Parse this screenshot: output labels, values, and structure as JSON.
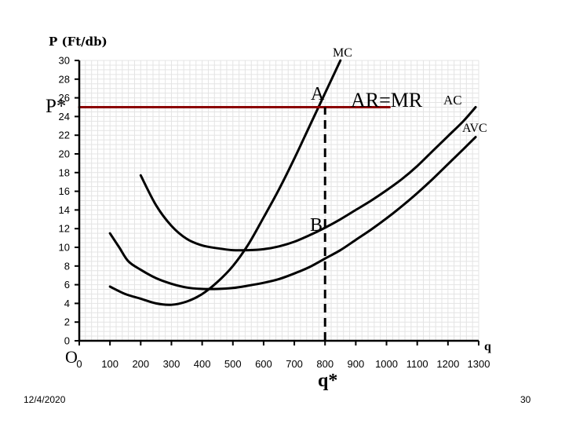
{
  "chart_data": {
    "type": "line",
    "ylabel": "P (Ft/db)",
    "xlabel": "q",
    "origin_label": "O",
    "xlim": [
      0,
      1300
    ],
    "ylim": [
      0,
      30
    ],
    "x_ticks": [
      0,
      100,
      200,
      300,
      400,
      500,
      600,
      700,
      800,
      900,
      1000,
      1100,
      1200,
      1300
    ],
    "y_ticks": [
      0,
      2,
      4,
      6,
      8,
      10,
      12,
      14,
      16,
      18,
      20,
      22,
      24,
      26,
      28,
      30
    ],
    "grid": true,
    "series": [
      {
        "name": "MC",
        "color": "#000000",
        "points": [
          [
            100,
            5.8
          ],
          [
            150,
            5.0
          ],
          [
            200,
            4.5
          ],
          [
            250,
            4.0
          ],
          [
            300,
            3.85
          ],
          [
            350,
            4.2
          ],
          [
            400,
            5.0
          ],
          [
            450,
            6.3
          ],
          [
            500,
            8.0
          ],
          [
            550,
            10.3
          ],
          [
            600,
            13.2
          ],
          [
            650,
            16.2
          ],
          [
            700,
            19.5
          ],
          [
            750,
            23.0
          ],
          [
            800,
            26.5
          ],
          [
            850,
            30.0
          ]
        ]
      },
      {
        "name": "AC",
        "color": "#000000",
        "points": [
          [
            200,
            17.7
          ],
          [
            250,
            14.5
          ],
          [
            300,
            12.3
          ],
          [
            350,
            10.9
          ],
          [
            400,
            10.2
          ],
          [
            450,
            9.9
          ],
          [
            500,
            9.7
          ],
          [
            550,
            9.7
          ],
          [
            600,
            9.8
          ],
          [
            650,
            10.1
          ],
          [
            700,
            10.6
          ],
          [
            750,
            11.3
          ],
          [
            800,
            12.1
          ],
          [
            850,
            13.0
          ],
          [
            900,
            14.0
          ],
          [
            950,
            15.0
          ],
          [
            1000,
            16.1
          ],
          [
            1050,
            17.3
          ],
          [
            1100,
            18.7
          ],
          [
            1150,
            20.3
          ],
          [
            1200,
            21.9
          ],
          [
            1250,
            23.5
          ],
          [
            1290,
            25.0
          ]
        ]
      },
      {
        "name": "AVC",
        "color": "#000000",
        "points": [
          [
            100,
            11.5
          ],
          [
            130,
            10.0
          ],
          [
            160,
            8.5
          ],
          [
            200,
            7.6
          ],
          [
            250,
            6.7
          ],
          [
            300,
            6.1
          ],
          [
            350,
            5.7
          ],
          [
            400,
            5.55
          ],
          [
            450,
            5.55
          ],
          [
            500,
            5.65
          ],
          [
            550,
            5.9
          ],
          [
            600,
            6.2
          ],
          [
            650,
            6.6
          ],
          [
            700,
            7.2
          ],
          [
            750,
            7.9
          ],
          [
            800,
            8.8
          ],
          [
            850,
            9.7
          ],
          [
            900,
            10.8
          ],
          [
            950,
            11.9
          ],
          [
            1000,
            13.1
          ],
          [
            1050,
            14.4
          ],
          [
            1100,
            15.8
          ],
          [
            1150,
            17.3
          ],
          [
            1200,
            18.9
          ],
          [
            1250,
            20.5
          ],
          [
            1290,
            21.8
          ]
        ]
      },
      {
        "name": "AR=MR",
        "color": "#8b0000",
        "points": [
          [
            0,
            25
          ],
          [
            1010,
            25
          ]
        ]
      }
    ],
    "annotations": [
      {
        "text": "P*",
        "x": 0,
        "y": 25
      },
      {
        "text": "A",
        "x": 800,
        "y": 25
      },
      {
        "text": "B",
        "x": 800,
        "y": 12
      },
      {
        "text": "q*",
        "x": 800,
        "y": 0
      }
    ],
    "guide_line": {
      "x": 800,
      "y_from": 0,
      "y_to": 25,
      "style": "dashed"
    }
  },
  "footer": {
    "date": "12/4/2020",
    "page": "30"
  }
}
